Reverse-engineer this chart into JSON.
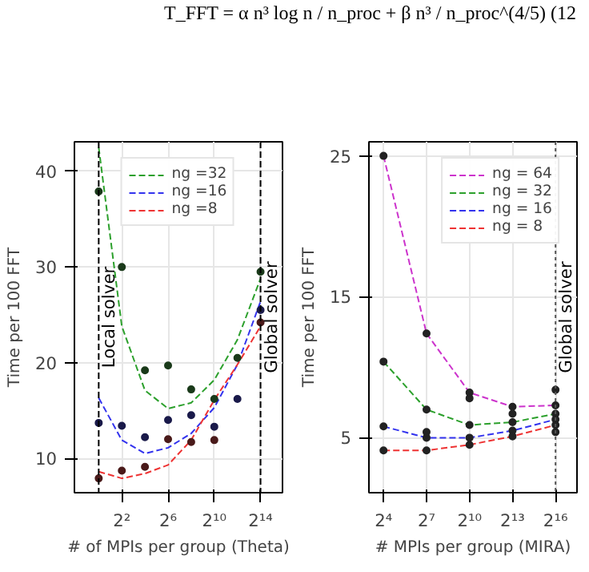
{
  "chart_data": [
    {
      "type": "line",
      "annotations": [
        "T_FFT = α n³ log n / n_proc + β n³ / n_proc^(4/5)    (12"
      ],
      "xlabel": "# of MPIs per group (Theta)",
      "ylabel": "Time per 100 FFT",
      "log": "x",
      "xlim": [
        0.233,
        61100
      ],
      "ylim": [
        6.4,
        43.1
      ],
      "xticks": [
        {
          "value": 4,
          "label": "2²"
        },
        {
          "value": 64,
          "label": "2⁶"
        },
        {
          "value": 1024,
          "label": "2¹⁰"
        },
        {
          "value": 16384,
          "label": "2¹⁴"
        }
      ],
      "yticks": [
        10,
        20,
        30,
        40
      ],
      "grid": true,
      "legend": "top",
      "line_style": "dashed",
      "marker": "none",
      "x": [
        1,
        4,
        16,
        64,
        256,
        1024,
        4096,
        16384
      ],
      "series": [
        {
          "name": "ng =32",
          "color": "#2ca02c",
          "values": [
            42.5,
            23.8,
            17.1,
            15.2,
            15.8,
            18.2,
            22.4,
            28.8
          ]
        },
        {
          "name": "ng =16",
          "color": "#3333ee",
          "values": [
            16.3,
            11.9,
            10.5,
            11.1,
            12.6,
            15.3,
            19.8,
            26.4
          ]
        },
        {
          "name": "ng =8",
          "color": "#ee3333",
          "values": [
            8.6,
            7.9,
            8.4,
            9.3,
            11.9,
            16.1,
            19.8,
            23.8
          ]
        },
        {
          "type": "scatter",
          "marker": "circle",
          "color": "#1a3a1a",
          "x": [
            1,
            4,
            16,
            64,
            256,
            1024,
            4096,
            16384
          ],
          "values": [
            37.9,
            30.0,
            19.2,
            19.7,
            17.2,
            16.2,
            20.5,
            29.5
          ]
        },
        {
          "type": "scatter",
          "marker": "circle",
          "color": "#1a1a4a",
          "x": [
            1,
            4,
            16,
            64,
            256,
            1024,
            4096,
            16384
          ],
          "values": [
            13.7,
            13.4,
            12.2,
            14.0,
            14.5,
            13.3,
            16.2,
            25.5
          ]
        },
        {
          "type": "scatter",
          "marker": "circle",
          "color": "#4a1a1a",
          "x": [
            1,
            4,
            16,
            64,
            256,
            1024,
            16384
          ],
          "values": [
            7.9,
            8.7,
            9.1,
            12.0,
            11.7,
            11.9,
            24.2
          ]
        }
      ],
      "ref_lines": [
        {
          "axis": "x",
          "value": 1,
          "label": "Local solver",
          "color": "#000000",
          "line_style": "dashed"
        },
        {
          "axis": "x",
          "value": 16384,
          "label": "Global solver",
          "color": "#000000",
          "line_style": "dashed"
        }
      ]
    },
    {
      "type": "line",
      "xlabel": "# MPIs per group (MIRA)",
      "ylabel": "Time per 100 FFT",
      "log": "x",
      "xlim": [
        7.9,
        185000
      ],
      "ylim": [
        1.1,
        26
      ],
      "xticks": [
        {
          "value": 16,
          "label": "2⁴"
        },
        {
          "value": 128,
          "label": "2⁷"
        },
        {
          "value": 1024,
          "label": "2¹⁰"
        },
        {
          "value": 8192,
          "label": "2¹³"
        },
        {
          "value": 65536,
          "label": "2¹⁶"
        }
      ],
      "yticks": [
        5,
        15,
        25
      ],
      "grid": true,
      "legend": "top right",
      "line_style": "dashed",
      "marker": "circle",
      "x": [
        16,
        128,
        1024,
        8192,
        65536
      ],
      "series": [
        {
          "name": "ng = 64",
          "color": "#cc33cc",
          "values": [
            25,
            12.4,
            8.2,
            7.2,
            7.3
          ]
        },
        {
          "name": "ng = 32",
          "color": "#2ca02c",
          "values": [
            10.4,
            7.0,
            5.9,
            6.1,
            6.7
          ]
        },
        {
          "name": "ng = 16",
          "color": "#3333ee",
          "values": [
            5.8,
            5.0,
            5.0,
            5.5,
            6.3
          ]
        },
        {
          "name": "ng = 8",
          "color": "#ee3333",
          "values": [
            4.1,
            4.1,
            4.5,
            5.1,
            5.9
          ]
        },
        {
          "type": "scatter",
          "color": "#222222",
          "x": [
            128,
            1024,
            8192,
            65536,
            65536
          ],
          "values": [
            5.4,
            7.8,
            6.7,
            8.4,
            5.4
          ]
        }
      ],
      "ref_lines": [
        {
          "axis": "x",
          "value": 65536,
          "label": "Global solver",
          "color": "#555555",
          "line_style": "dotted"
        }
      ]
    }
  ]
}
